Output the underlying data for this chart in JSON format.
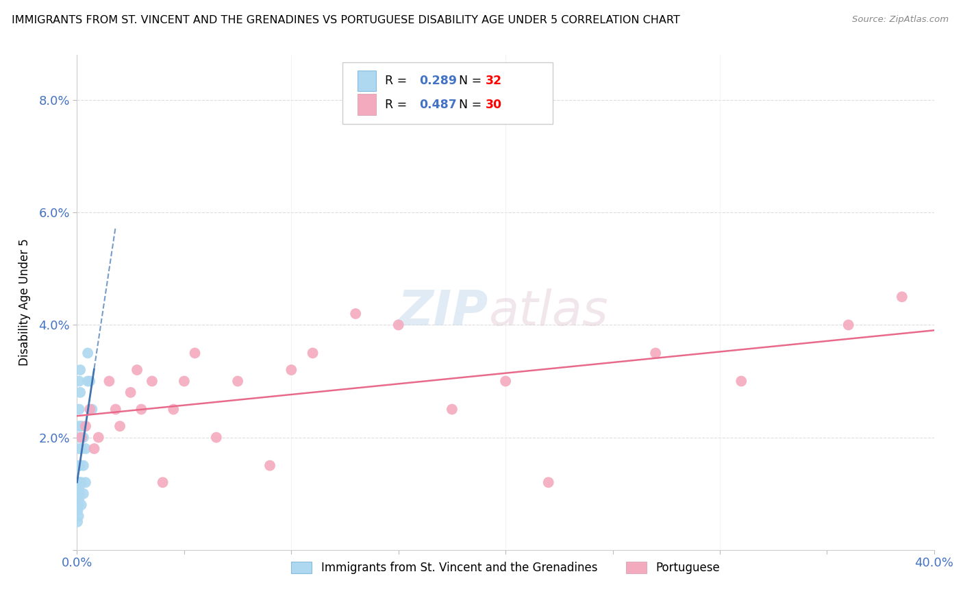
{
  "title": "IMMIGRANTS FROM ST. VINCENT AND THE GRENADINES VS PORTUGUESE DISABILITY AGE UNDER 5 CORRELATION CHART",
  "source": "Source: ZipAtlas.com",
  "ylabel": "Disability Age Under 5",
  "xlim": [
    0.0,
    0.4
  ],
  "ylim": [
    0.0,
    0.088
  ],
  "xticks": [
    0.0,
    0.05,
    0.1,
    0.15,
    0.2,
    0.25,
    0.3,
    0.35,
    0.4
  ],
  "yticks": [
    0.0,
    0.02,
    0.04,
    0.06,
    0.08
  ],
  "blue_R": 0.289,
  "blue_N": 32,
  "pink_R": 0.487,
  "pink_N": 30,
  "blue_color": "#ADD8F0",
  "pink_color": "#F4AABE",
  "blue_line_color": "#3E72B0",
  "pink_line_color": "#E8698A",
  "legend_blue_label": "Immigrants from St. Vincent and the Grenadines",
  "legend_pink_label": "Portuguese",
  "watermark_zip": "ZIP",
  "watermark_atlas": "atlas",
  "background_color": "#FFFFFF",
  "grid_color": "#CCCCCC",
  "text_color": "#4472C4",
  "n_color": "#FF0000",
  "blue_scatter_x": [
    0.0002,
    0.0003,
    0.0004,
    0.0005,
    0.0006,
    0.0007,
    0.0008,
    0.0009,
    0.001,
    0.001,
    0.001,
    0.001,
    0.001,
    0.001,
    0.0012,
    0.0013,
    0.0014,
    0.0015,
    0.0015,
    0.002,
    0.002,
    0.002,
    0.002,
    0.003,
    0.003,
    0.003,
    0.004,
    0.004,
    0.005,
    0.005,
    0.006,
    0.007
  ],
  "blue_scatter_y": [
    0.005,
    0.007,
    0.01,
    0.012,
    0.008,
    0.006,
    0.009,
    0.011,
    0.015,
    0.02,
    0.025,
    0.03,
    0.018,
    0.022,
    0.01,
    0.012,
    0.015,
    0.028,
    0.032,
    0.008,
    0.012,
    0.018,
    0.022,
    0.01,
    0.015,
    0.02,
    0.012,
    0.018,
    0.03,
    0.035,
    0.03,
    0.025
  ],
  "pink_scatter_x": [
    0.002,
    0.004,
    0.006,
    0.008,
    0.01,
    0.015,
    0.018,
    0.02,
    0.025,
    0.028,
    0.03,
    0.035,
    0.04,
    0.045,
    0.05,
    0.055,
    0.065,
    0.075,
    0.09,
    0.1,
    0.11,
    0.13,
    0.15,
    0.175,
    0.2,
    0.22,
    0.27,
    0.31,
    0.36,
    0.385
  ],
  "pink_scatter_y": [
    0.02,
    0.022,
    0.025,
    0.018,
    0.02,
    0.03,
    0.025,
    0.022,
    0.028,
    0.032,
    0.025,
    0.03,
    0.012,
    0.025,
    0.03,
    0.035,
    0.02,
    0.03,
    0.015,
    0.032,
    0.035,
    0.042,
    0.04,
    0.025,
    0.03,
    0.012,
    0.035,
    0.03,
    0.04,
    0.045
  ],
  "blue_line_x_start": 0.0,
  "blue_line_x_end": 0.018,
  "pink_line_x_start": 0.0,
  "pink_line_x_end": 0.4
}
